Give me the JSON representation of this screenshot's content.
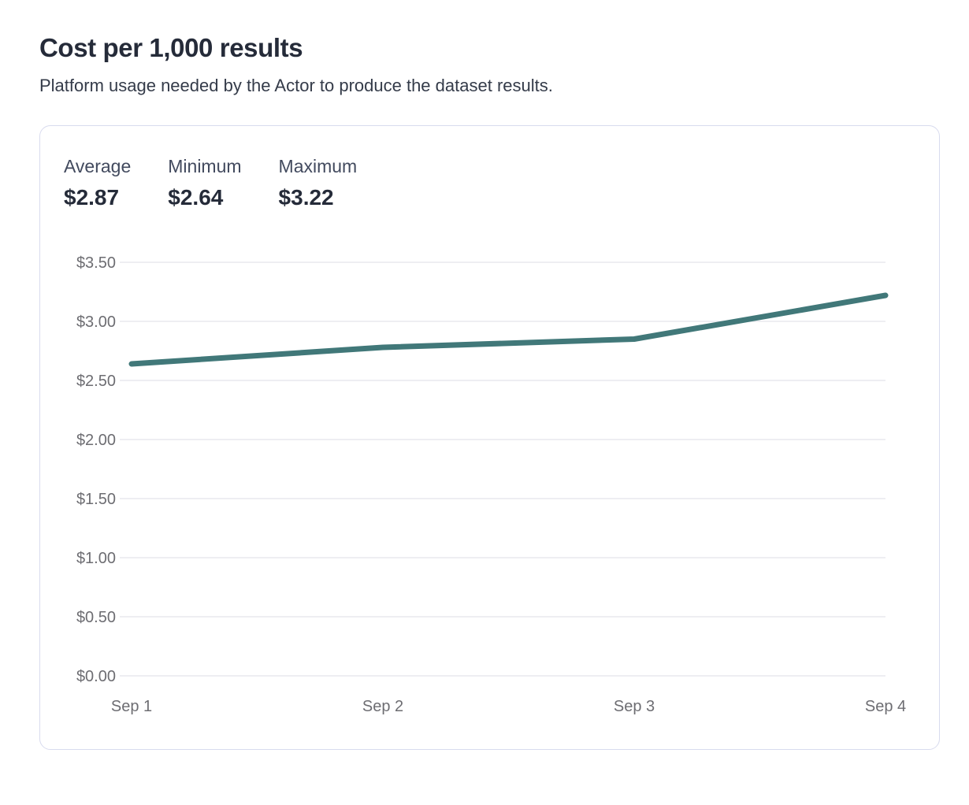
{
  "header": {
    "title": "Cost per 1,000 results",
    "subtitle": "Platform usage needed by the Actor to produce the dataset results."
  },
  "stats": [
    {
      "label": "Average",
      "value": "$2.87"
    },
    {
      "label": "Minimum",
      "value": "$2.64"
    },
    {
      "label": "Maximum",
      "value": "$3.22"
    }
  ],
  "chart_data": {
    "type": "line",
    "title": "Cost per 1,000 results",
    "categories": [
      "Sep 1",
      "Sep 2",
      "Sep 3",
      "Sep 4"
    ],
    "series": [
      {
        "name": "Cost per 1,000 results",
        "values": [
          2.64,
          2.78,
          2.85,
          3.22
        ]
      }
    ],
    "xlabel": "",
    "ylabel": "",
    "ylim": [
      0,
      3.5
    ],
    "y_tick_step": 0.5,
    "y_tick_labels": [
      "$0.00",
      "$0.50",
      "$1.00",
      "$1.50",
      "$2.00",
      "$2.50",
      "$3.00",
      "$3.50"
    ],
    "grid": "horizontal",
    "legend": "none",
    "colors": {
      "line": "#417879",
      "gridline": "#e9e9ed",
      "tick_text": "#6d6d72"
    }
  }
}
